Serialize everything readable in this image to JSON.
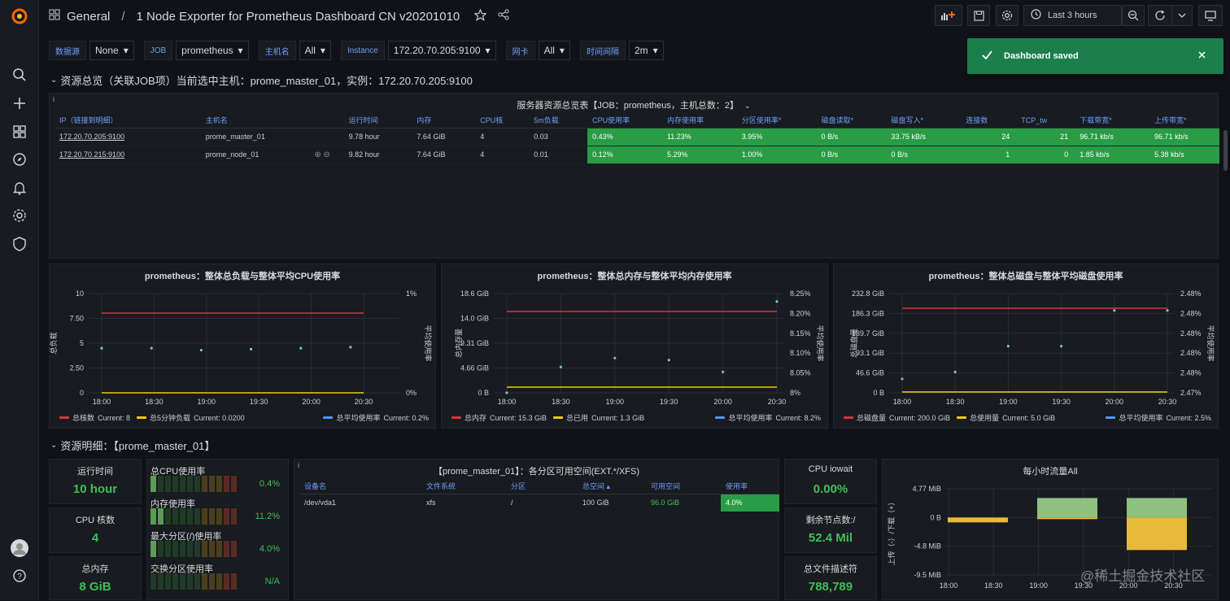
{
  "breadcrumb": {
    "folder": "General",
    "separator": "/",
    "dashboard": "1 Node Exporter for Prometheus Dashboard CN v20201010"
  },
  "time_picker": {
    "label": "Last 3 hours"
  },
  "toast": {
    "message": "Dashboard saved"
  },
  "variables": [
    {
      "label": "数据源",
      "value": "None"
    },
    {
      "label": "JOB",
      "value": "prometheus"
    },
    {
      "label": "主机名",
      "value": "All"
    },
    {
      "label": "Instance",
      "value": "172.20.70.205:9100"
    },
    {
      "label": "网卡",
      "value": "All"
    },
    {
      "label": "时间间隔",
      "value": "2m"
    }
  ],
  "row1": {
    "title": "资源总览（关联JOB项）当前选中主机：prome_master_01，实例：172.20.70.205:9100"
  },
  "server_table": {
    "title": "服务器资源总览表【JOB：prometheus，主机总数：2】",
    "columns": [
      "IP（链接到明细）",
      "主机名",
      "运行时间",
      "内存",
      "CPU核",
      "5m负载",
      "CPU使用率",
      "内存使用率",
      "分区使用率*",
      "磁盘读取*",
      "磁盘写入*",
      "连接数",
      "TCP_tw",
      "下载带宽*",
      "上传带宽*"
    ],
    "rows": [
      [
        "172.20.70.205:9100",
        "prome_master_01",
        "9.78 hour",
        "7.64 GiB",
        "4",
        "0.03",
        "0.43%",
        "11.23%",
        "3.95%",
        "0 B/s",
        "33.75 kB/s",
        "24",
        "21",
        "96.71 kb/s",
        "96.71 kb/s"
      ],
      [
        "172.20.70.215:9100",
        "prome_node_01",
        "9.82 hour",
        "7.64 GiB",
        "4",
        "0.01",
        "0.12%",
        "5.29%",
        "1.00%",
        "0 B/s",
        "0 B/s",
        "1",
        "0",
        "1.85 kb/s",
        "5.38 kb/s"
      ]
    ]
  },
  "charts": {
    "cpu": {
      "title": "prometheus：整体总负载与整体平均CPU使用率",
      "ylabel": "总负载",
      "y2label": "平均使用率",
      "yticks": [
        "10",
        "7.50",
        "5",
        "2.50",
        "0"
      ],
      "y2ticks": [
        "1%",
        "",
        "",
        "",
        "0%"
      ],
      "xticks": [
        "18:00",
        "18:30",
        "19:00",
        "19:30",
        "20:00",
        "20:30"
      ],
      "legend": [
        {
          "name": "总核数",
          "current": "Current: 8",
          "color": "#e02f44"
        },
        {
          "name": "总5分钟负载",
          "current": "Current: 0.0200",
          "color": "#f2cc0c"
        },
        {
          "name": "总平均使用率",
          "current": "Current: 0.2%",
          "color": "#5794f2"
        }
      ]
    },
    "mem": {
      "title": "prometheus：整体总内存与整体平均内存使用率",
      "ylabel": "总内存量",
      "y2label": "平均使用率",
      "yticks": [
        "18.6 GiB",
        "14.0 GiB",
        "9.31 GiB",
        "4.66 GiB",
        "0 B"
      ],
      "y2ticks": [
        "8.25%",
        "8.20%",
        "8.15%",
        "8.10%",
        "8.05%",
        "8%"
      ],
      "xticks": [
        "18:00",
        "18:30",
        "19:00",
        "19:30",
        "20:00",
        "20:30"
      ],
      "legend": [
        {
          "name": "总内存",
          "current": "Current: 15.3 GiB",
          "color": "#e02f44"
        },
        {
          "name": "总已用",
          "current": "Current: 1.3 GiB",
          "color": "#f2cc0c"
        },
        {
          "name": "总平均使用率",
          "current": "Current: 8.2%",
          "color": "#5794f2"
        }
      ]
    },
    "disk": {
      "title": "prometheus：整体总磁盘与整体平均磁盘使用率",
      "ylabel": "总磁盘量",
      "y2label": "平均使用率",
      "yticks": [
        "232.8 GiB",
        "186.3 GiB",
        "139.7 GiB",
        "93.1 GiB",
        "46.6 GiB",
        "0 B"
      ],
      "y2ticks": [
        "2.48%",
        "2.48%",
        "2.48%",
        "2.48%",
        "2.48%",
        "2.47%"
      ],
      "xticks": [
        "18:00",
        "18:30",
        "19:00",
        "19:30",
        "20:00",
        "20:30"
      ],
      "legend": [
        {
          "name": "总磁盘量",
          "current": "Current: 200.0 GiB",
          "color": "#e02f44"
        },
        {
          "name": "总使用量",
          "current": "Current: 5.0 GiB",
          "color": "#f2cc0c"
        },
        {
          "name": "总平均使用率",
          "current": "Current: 2.5%",
          "color": "#5794f2"
        }
      ]
    }
  },
  "row2": {
    "title": "资源明细：【prome_master_01】"
  },
  "stats": {
    "uptime": {
      "title": "运行时间",
      "value": "10 hour"
    },
    "cpu_cores": {
      "title": "CPU 核数",
      "value": "4"
    },
    "total_mem": {
      "title": "总内存",
      "value": "8 GiB"
    },
    "iowait": {
      "title": "CPU iowait",
      "value": "0.00%"
    },
    "free_nodes": {
      "title": "剩余节点数:/",
      "value": "52.4 Mil"
    },
    "fd": {
      "title": "总文件描述符",
      "value": "788,789"
    }
  },
  "gauges": [
    {
      "label": "总CPU使用率",
      "value": "0.4%"
    },
    {
      "label": "内存使用率",
      "value": "11.2%"
    },
    {
      "label": "最大分区(/)使用率",
      "value": "4.0%"
    },
    {
      "label": "交换分区使用率",
      "value": "N/A"
    }
  ],
  "fs_table": {
    "title": "【prome_master_01】：各分区可用空间(EXT.*/XFS)",
    "columns": [
      "设备名",
      "文件系统",
      "分区",
      "总空间",
      "可用空间",
      "使用率"
    ],
    "rows": [
      [
        "/dev/vda1",
        "xfs",
        "/",
        "100 GiB",
        "96.0 GiB",
        "4.0%"
      ]
    ]
  },
  "traffic": {
    "title": "每小时流量All",
    "ylabel": "上传（-）/下载（+）",
    "yticks": [
      "4.77 MiB",
      "0 B",
      "-4.8 MiB",
      "-9.5 MiB"
    ],
    "xticks": [
      "18:00",
      "18:30",
      "19:00",
      "19:30",
      "20:00",
      "20:30"
    ]
  },
  "watermark": "@稀土掘金技术社区",
  "colors": {
    "green": "#299c46",
    "red": "#e02f44",
    "yellow": "#f2cc0c",
    "blue": "#5794f2",
    "link": "#6e9fff"
  }
}
